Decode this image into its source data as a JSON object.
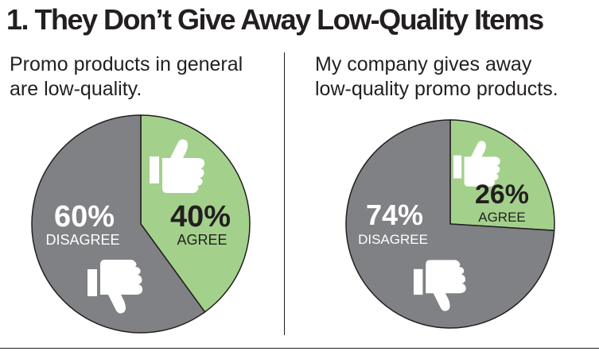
{
  "title": "1. They Don’t Give Away Low-Quality Items",
  "colors": {
    "agree": "#a3d18c",
    "disagree": "#808184",
    "text_dark": "#231f20",
    "text_light": "#ffffff"
  },
  "chart_data": [
    {
      "type": "pie",
      "title_lines": [
        "Promo products in general",
        "are low-quality."
      ],
      "slices": [
        {
          "label": "AGREE",
          "value": 40,
          "value_text": "40%",
          "color": "#a3d18c",
          "icon": "thumbs-up-icon"
        },
        {
          "label": "DISAGREE",
          "value": 60,
          "value_text": "60%",
          "color": "#808184",
          "icon": "thumbs-down-icon"
        }
      ]
    },
    {
      "type": "pie",
      "title_lines": [
        "My company gives away",
        "low-quality promo products."
      ],
      "slices": [
        {
          "label": "AGREE",
          "value": 26,
          "value_text": "26%",
          "color": "#a3d18c",
          "icon": "thumbs-up-icon"
        },
        {
          "label": "DISAGREE",
          "value": 74,
          "value_text": "74%",
          "color": "#808184",
          "icon": "thumbs-down-icon"
        }
      ]
    }
  ]
}
